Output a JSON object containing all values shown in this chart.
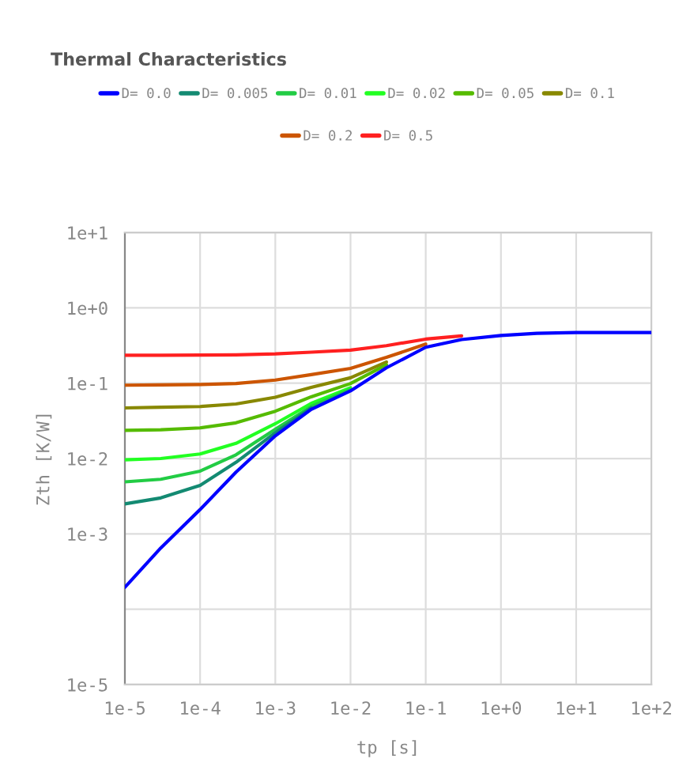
{
  "chart_data": {
    "type": "line",
    "title": "Thermal Characteristics",
    "xlabel": "tp [s]",
    "ylabel": "Zth [K/W]",
    "x": [
      1e-05,
      3e-05,
      0.0001,
      0.0003,
      0.001,
      0.003,
      0.01,
      0.03,
      0.1,
      0.3,
      1,
      3,
      10,
      100
    ],
    "series": [
      {
        "name": "D= 0.0",
        "color": "#0000ff",
        "values": [
          0.000195,
          0.00065,
          0.0021,
          0.0066,
          0.02,
          0.045,
          0.079,
          0.16,
          0.3,
          0.38,
          0.43,
          0.46,
          0.47,
          0.47
        ]
      },
      {
        "name": "D= 0.005",
        "color": "#138a72",
        "values": [
          0.0025,
          0.003,
          0.0044,
          0.0089,
          0.022,
          0.047,
          null,
          null,
          null,
          null,
          null,
          null,
          null,
          null
        ]
      },
      {
        "name": "D= 0.01",
        "color": "#22cc44",
        "values": [
          0.0049,
          0.0053,
          0.0068,
          0.0112,
          0.0245,
          0.049,
          0.083,
          null,
          null,
          null,
          null,
          null,
          null,
          null
        ]
      },
      {
        "name": "D= 0.02",
        "color": "#22ff22",
        "values": [
          0.0096,
          0.01,
          0.0115,
          0.0159,
          0.029,
          0.054,
          0.087,
          null,
          null,
          null,
          null,
          null,
          null,
          null
        ]
      },
      {
        "name": "D= 0.05",
        "color": "#55bb00",
        "values": [
          0.0237,
          0.0241,
          0.0255,
          0.0298,
          0.0425,
          0.066,
          0.099,
          0.176,
          null,
          null,
          null,
          null,
          null,
          null
        ]
      },
      {
        "name": "D= 0.1",
        "color": "#888800",
        "values": [
          0.047,
          0.048,
          0.049,
          0.053,
          0.065,
          0.088,
          0.118,
          0.191,
          null,
          null,
          null,
          null,
          null,
          null
        ]
      },
      {
        "name": "D= 0.2",
        "color": "#cc5500",
        "values": [
          0.094,
          0.095,
          0.096,
          0.099,
          0.11,
          0.13,
          0.157,
          0.22,
          0.33,
          null,
          null,
          null,
          null,
          null
        ]
      },
      {
        "name": "D= 0.5",
        "color": "#ff2020",
        "values": [
          0.235,
          0.235,
          0.236,
          0.238,
          0.245,
          0.258,
          0.275,
          0.315,
          0.385,
          0.425,
          null,
          null,
          null,
          null
        ]
      }
    ],
    "log": "xy",
    "xlim": [
      1e-05,
      100
    ],
    "ylim": [
      1e-05,
      10
    ],
    "xticks": [
      {
        "value": 1e-05,
        "label": "1e-5"
      },
      {
        "value": 0.0001,
        "label": "1e-4"
      },
      {
        "value": 0.001,
        "label": "1e-3"
      },
      {
        "value": 0.01,
        "label": "1e-2"
      },
      {
        "value": 0.1,
        "label": "1e-1"
      },
      {
        "value": 1,
        "label": "1e+0"
      },
      {
        "value": 10,
        "label": "1e+1"
      },
      {
        "value": 100,
        "label": "1e+2"
      }
    ],
    "yticks": [
      {
        "value": 1e-05,
        "label": "1e-5"
      },
      {
        "value": 0.0001,
        "label": null
      },
      {
        "value": 0.001,
        "label": "1e-3"
      },
      {
        "value": 0.01,
        "label": "1e-2"
      },
      {
        "value": 0.1,
        "label": "1e-1"
      },
      {
        "value": 1,
        "label": "1e+0"
      },
      {
        "value": 10,
        "label": "1e+1"
      }
    ],
    "grid": true,
    "legend": "top",
    "marker": "none",
    "line_style": "solid"
  }
}
